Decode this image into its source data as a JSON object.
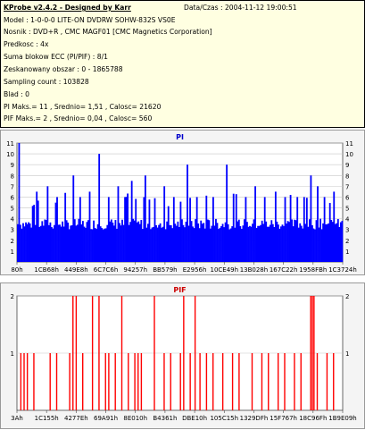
{
  "header": {
    "title": "KProbe v2.4.2 - Designed by Karr",
    "date": "Data/Czas : 2004-11-12 19:00:51",
    "lines": [
      "Model : 1-0-0-0 LITE-ON DVDRW SOHW-832S  VS0E",
      "Nosnik : DVD+R , CMC MAGF01 [CMC Magnetics Corporation]",
      "Predkosc : 4x",
      "Suma blokow ECC (PI/PIF) : 8/1",
      "Zeskanowany obszar : 0 - 1865788",
      "Sampling count : 103828",
      "Blad : 0",
      "PI Maks.= 11 , Srednio= 1,51 , Calosc= 21620",
      "PIF Maks.= 2 , Srednio= 0,04 , Calosc= 560"
    ]
  },
  "colors": {
    "pi_bar": "#0000ff",
    "pif_bar": "#ff0000",
    "title_pi": "#0000cc",
    "title_pif": "#cc0000"
  },
  "chart_data": [
    {
      "type": "bar",
      "title": "PI",
      "ylim": [
        0,
        11
      ],
      "yticks": [
        1,
        2,
        3,
        4,
        5,
        6,
        7,
        8,
        9,
        10,
        11
      ],
      "xticks": [
        "80h",
        "1CB68h",
        "449E8h",
        "6C7C6h",
        "94257h",
        "BB579h",
        "E2956h",
        "10CE49h",
        "13B028h",
        "167C22h",
        "1958FBh",
        "1C3724h"
      ],
      "baseline_range": [
        3,
        4
      ],
      "spikes": [
        [
          0.004,
          11
        ],
        [
          0.06,
          6.5
        ],
        [
          0.09,
          7
        ],
        [
          0.12,
          6
        ],
        [
          0.17,
          8
        ],
        [
          0.19,
          6
        ],
        [
          0.22,
          6.5
        ],
        [
          0.25,
          10
        ],
        [
          0.28,
          6
        ],
        [
          0.31,
          7
        ],
        [
          0.33,
          6
        ],
        [
          0.35,
          7.5
        ],
        [
          0.39,
          8
        ],
        [
          0.42,
          6
        ],
        [
          0.45,
          7
        ],
        [
          0.48,
          6
        ],
        [
          0.52,
          9
        ],
        [
          0.55,
          6
        ],
        [
          0.58,
          7
        ],
        [
          0.6,
          6
        ],
        [
          0.64,
          9
        ],
        [
          0.67,
          6
        ],
        [
          0.7,
          6
        ],
        [
          0.73,
          7
        ],
        [
          0.76,
          6
        ],
        [
          0.79,
          6.5
        ],
        [
          0.82,
          6
        ],
        [
          0.86,
          6
        ],
        [
          0.88,
          6
        ],
        [
          0.9,
          8
        ],
        [
          0.92,
          7
        ],
        [
          0.94,
          6
        ],
        [
          0.97,
          6.5
        ]
      ],
      "grid": true
    },
    {
      "type": "bar",
      "title": "PIF",
      "ylim": [
        0,
        2
      ],
      "yticks": [
        1,
        2
      ],
      "xticks": [
        "3Ah",
        "1C155h",
        "4277Eh",
        "69A91h",
        "8E010h",
        "B4361h",
        "DBE10h",
        "105C15h",
        "1329DFh",
        "15F767h",
        "18C96Fh",
        "1B9E09h"
      ],
      "values2": [
        0.17,
        0.18,
        0.23,
        0.25,
        0.32,
        0.42,
        0.51,
        0.545,
        0.9,
        0.905,
        0.91
      ],
      "values1": [
        0.01,
        0.02,
        0.03,
        0.05,
        0.1,
        0.12,
        0.16,
        0.2,
        0.27,
        0.28,
        0.3,
        0.34,
        0.36,
        0.37,
        0.38,
        0.45,
        0.47,
        0.5,
        0.53,
        0.56,
        0.58,
        0.6,
        0.63,
        0.66,
        0.68,
        0.72,
        0.75,
        0.77,
        0.8,
        0.82,
        0.85,
        0.87,
        0.92,
        0.95,
        0.97
      ],
      "grid": true
    }
  ]
}
